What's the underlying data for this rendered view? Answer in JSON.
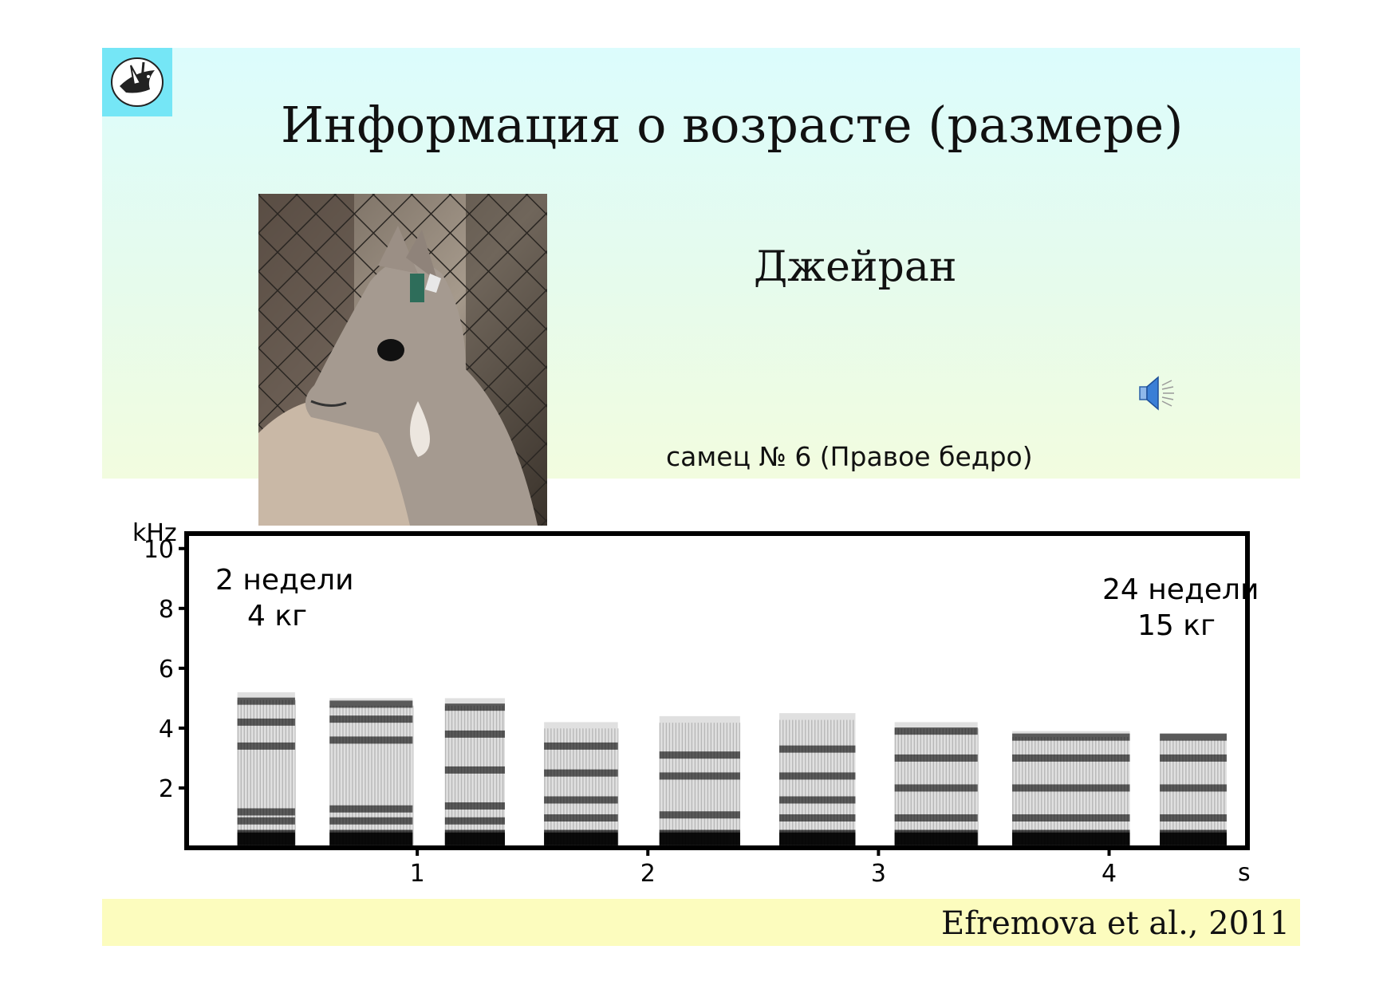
{
  "slide": {
    "title": "Информация о возрасте (размере)",
    "species": "Джейран",
    "caption": "самец № 6 (Правое бедро)",
    "citation": "Efremova et al., 2011"
  },
  "icons": {
    "logo": "bird-in-hand-logo-icon",
    "audio": "speaker-icon",
    "photo": "goitered-gazelle-photo"
  },
  "colors": {
    "header_gradient_top": "#dcfcfd",
    "header_gradient_bottom": "#f2fcdf",
    "footer_band": "#fcfcbe",
    "logo_bg": "#75e6f6",
    "speaker_blue": "#3a7fd6"
  },
  "chart_data": {
    "type": "heatmap",
    "title": "",
    "ylabel": "kHz",
    "xlabel": "s",
    "x_ticks": [
      "1",
      "2",
      "3",
      "4"
    ],
    "y_ticks": [
      "2",
      "4",
      "6",
      "8",
      "10"
    ],
    "xlim": [
      0,
      4.6
    ],
    "ylim": [
      0,
      10.5
    ],
    "annotations": [
      {
        "line1": "2 недели",
        "line2": "4 кг"
      },
      {
        "line1": "24 недели",
        "line2": "15 кг"
      }
    ],
    "calls": [
      {
        "start": 0.22,
        "end": 0.47,
        "top_khz": 5.2,
        "bands_khz": [
          0.3,
          0.9,
          1.2,
          3.4,
          4.2,
          4.9
        ]
      },
      {
        "start": 0.62,
        "end": 0.98,
        "top_khz": 5.0,
        "bands_khz": [
          0.3,
          0.9,
          1.3,
          3.6,
          4.3,
          4.8
        ]
      },
      {
        "start": 1.12,
        "end": 1.38,
        "top_khz": 5.0,
        "bands_khz": [
          0.3,
          0.9,
          1.4,
          2.6,
          3.8,
          4.7
        ]
      },
      {
        "start": 1.55,
        "end": 1.87,
        "top_khz": 4.2,
        "bands_khz": [
          0.3,
          1.0,
          1.6,
          2.5,
          3.4
        ]
      },
      {
        "start": 2.05,
        "end": 2.4,
        "top_khz": 4.4,
        "bands_khz": [
          0.3,
          1.1,
          2.4,
          3.1
        ]
      },
      {
        "start": 2.57,
        "end": 2.9,
        "top_khz": 4.5,
        "bands_khz": [
          0.3,
          1.0,
          1.6,
          2.4,
          3.3
        ]
      },
      {
        "start": 3.07,
        "end": 3.43,
        "top_khz": 4.2,
        "bands_khz": [
          0.3,
          1.0,
          2.0,
          3.0,
          3.9
        ]
      },
      {
        "start": 3.58,
        "end": 4.09,
        "top_khz": 3.9,
        "bands_khz": [
          0.3,
          1.0,
          2.0,
          3.0,
          3.7
        ]
      },
      {
        "start": 4.22,
        "end": 4.51,
        "top_khz": 3.8,
        "bands_khz": [
          0.3,
          1.0,
          2.0,
          3.0,
          3.7
        ]
      }
    ]
  }
}
